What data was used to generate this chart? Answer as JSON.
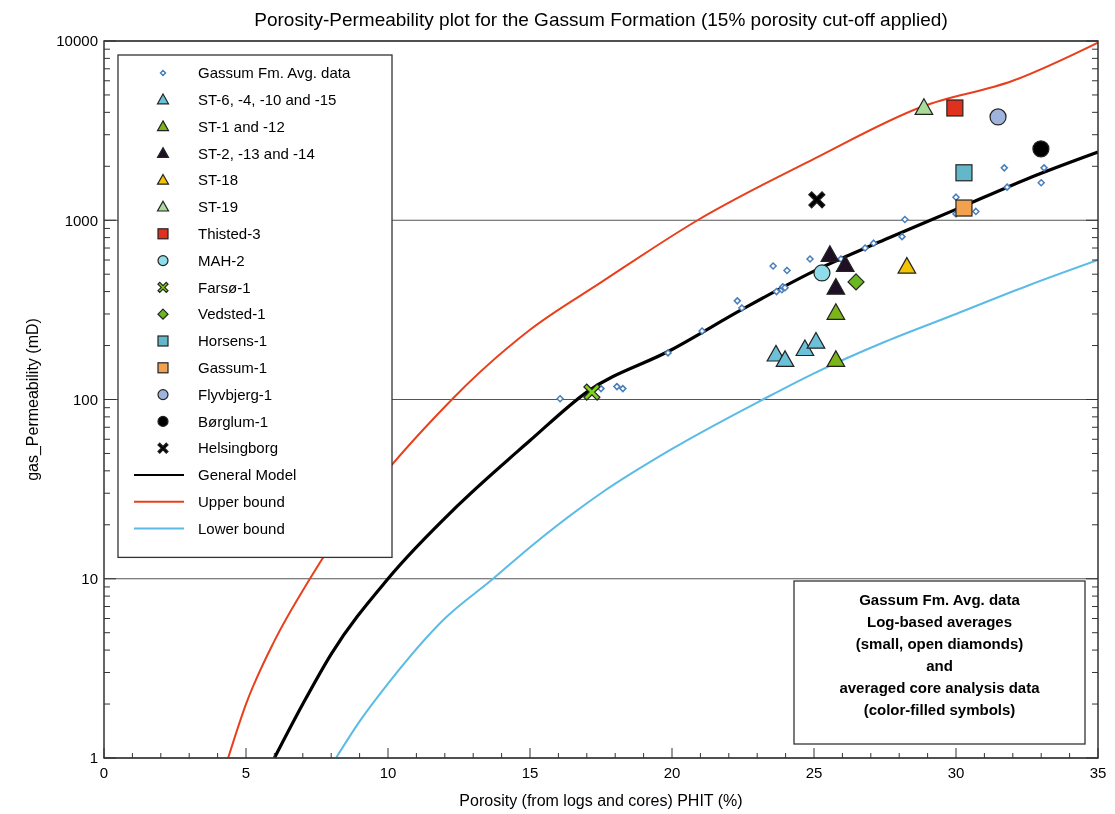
{
  "chart_data": {
    "type": "scatter",
    "title": "Porosity-Permeability plot for the Gassum Formation (15% porosity cut-off applied)",
    "xlabel": "Porosity (from logs and cores) PHIT (%)",
    "ylabel": "gas_Permeability (mD)",
    "xlim": [
      0,
      35
    ],
    "xticks": [
      0,
      5,
      10,
      15,
      20,
      25,
      30,
      35
    ],
    "ylim": [
      1,
      10000
    ],
    "yticks": [
      1,
      10,
      100,
      1000,
      10000
    ],
    "log": "y",
    "grid": "y",
    "legend": "top left",
    "annotations": [
      "Gassum Fm. Avg. data\nLog-based averages\n(small, open diamonds)\nand\naveraged core analysis data\n(color-filled symbols)"
    ],
    "series": [
      {
        "name": "Gassum Fm. Avg. data",
        "color": "#4a7ebb",
        "marker": "diamond",
        "x": [
          16.06,
          17.5,
          18.06,
          18.27,
          19.86,
          21.06,
          22.3,
          22.46,
          23.56,
          23.68,
          23.87,
          23.9,
          23.98,
          24.05,
          24.86,
          25.95,
          26.8,
          27.1,
          28.1,
          28.2,
          30.0,
          30.0,
          30.7,
          31.7,
          31.8,
          33.0,
          33.1
        ],
        "values": [
          101,
          115,
          118,
          115,
          182,
          241,
          355,
          324,
          556,
          400,
          410,
          425,
          420,
          525,
          608,
          608,
          700,
          745,
          810,
          1010,
          1345,
          1085,
          1120,
          1960,
          1530,
          1620,
          1960
        ]
      },
      {
        "name": "ST-6, -4, -10 and -15",
        "color": "#6cc0d8",
        "marker": "triangle",
        "x": [
          23.66,
          23.98,
          24.68,
          25.07
        ],
        "values": [
          178,
          166,
          191,
          210
        ]
      },
      {
        "name": "ST-1 and -12",
        "color": "#7cb518",
        "marker": "triangle",
        "x": [
          25.77,
          25.77
        ],
        "values": [
          304,
          166
        ]
      },
      {
        "name": "ST-2, -13 and -14",
        "color": "#1f0f24",
        "marker": "triangle",
        "x": [
          25.56,
          26.1,
          25.77
        ],
        "values": [
          640,
          563,
          420
        ]
      },
      {
        "name": "ST-18",
        "color": "#f5c400",
        "marker": "triangle",
        "x": [
          28.27
        ],
        "values": [
          550
        ]
      },
      {
        "name": "ST-19",
        "color": "#a8dc98",
        "marker": "triangle",
        "x": [
          28.87
        ],
        "values": [
          4230
        ]
      },
      {
        "name": "Thisted-3",
        "color": "#e0301e",
        "marker": "square",
        "x": [
          29.96
        ],
        "values": [
          4230
        ]
      },
      {
        "name": "MAH-2",
        "color": "#8fdcea",
        "marker": "circle",
        "x": [
          25.28
        ],
        "values": [
          508
        ]
      },
      {
        "name": "Farsø-1",
        "color": "#7fd11b",
        "marker": "cross",
        "x": [
          17.18
        ],
        "values": [
          110
        ]
      },
      {
        "name": "Vedsted-1",
        "color": "#6ab820",
        "marker": "diamond",
        "x": [
          26.48
        ],
        "values": [
          453
        ]
      },
      {
        "name": "Horsens-1",
        "color": "#63b7c9",
        "marker": "square",
        "x": [
          30.28
        ],
        "values": [
          1840
        ]
      },
      {
        "name": "Gassum-1",
        "color": "#f2a24e",
        "marker": "square",
        "x": [
          30.28
        ],
        "values": [
          1170
        ]
      },
      {
        "name": "Flyvbjerg-1",
        "color": "#9fb4dc",
        "marker": "circle",
        "x": [
          31.48
        ],
        "values": [
          3770
        ]
      },
      {
        "name": "Børglum-1",
        "color": "#000000",
        "marker": "circle",
        "x": [
          32.99
        ],
        "values": [
          2500
        ]
      },
      {
        "name": "Helsingborg",
        "color": "#000000",
        "marker": "cross",
        "x": [
          25.1
        ],
        "values": [
          1300
        ]
      },
      {
        "name": "General Model",
        "type": "line",
        "color": "#000000",
        "x": [
          6,
          7,
          8,
          10,
          12.5,
          15,
          17,
          20,
          22.5,
          25,
          27.5,
          30,
          32.5,
          35
        ],
        "values": [
          1,
          2,
          3.8,
          10,
          26,
          59,
          110,
          190,
          320,
          520,
          780,
          1150,
          1700,
          2400
        ]
      },
      {
        "name": "Upper bound",
        "type": "line",
        "color": "#e8401c",
        "x": [
          4.37,
          5,
          6,
          7.25,
          12.25,
          15,
          17.5,
          20.9,
          25,
          28.8,
          32,
          35
        ],
        "values": [
          1,
          2,
          4.5,
          10,
          100,
          245,
          450,
          1000,
          2200,
          4300,
          6000,
          9800
        ]
      },
      {
        "name": "Lower bound",
        "type": "line",
        "color": "#5bbbe6",
        "x": [
          8.17,
          9,
          10,
          12,
          13.7,
          15,
          17.5,
          20,
          23.2,
          25,
          27.5,
          30,
          32.5,
          35
        ],
        "values": [
          1,
          1.6,
          2.6,
          6,
          10,
          15,
          30,
          53,
          100,
          140,
          210,
          300,
          430,
          600
        ]
      }
    ]
  }
}
